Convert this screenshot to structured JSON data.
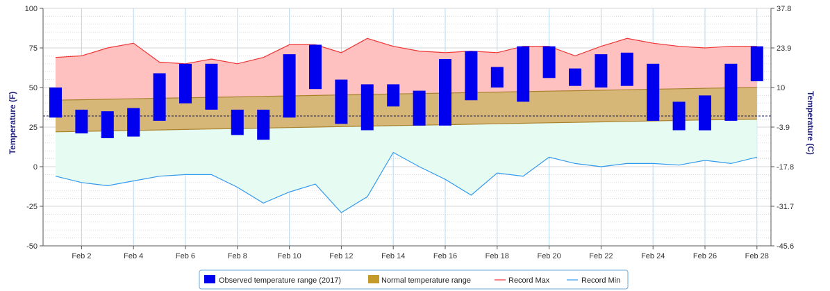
{
  "chart_data": {
    "type": "bar",
    "title": "",
    "x_tick_labels": [
      "Feb 2",
      "Feb 4",
      "Feb 6",
      "Feb 8",
      "Feb 10",
      "Feb 12",
      "Feb 14",
      "Feb 16",
      "Feb 18",
      "Feb 20",
      "Feb 22",
      "Feb 24",
      "Feb 26",
      "Feb 28"
    ],
    "x_tick_days": [
      2,
      4,
      6,
      8,
      10,
      12,
      14,
      16,
      18,
      20,
      22,
      24,
      26,
      28
    ],
    "y_left": {
      "label": "Temperature (F)",
      "ylim": [
        -50,
        100
      ],
      "ticks": [
        -50,
        -25,
        0,
        25,
        50,
        75,
        100
      ]
    },
    "y_right": {
      "label": "Temperature (C)",
      "ticks": [
        -45.6,
        -31.7,
        -17.8,
        -3.9,
        10,
        23.9,
        37.8
      ]
    },
    "grid": true,
    "reference_line_value": 32,
    "legend_placement": "bottom-center",
    "days": [
      1,
      2,
      3,
      4,
      5,
      6,
      7,
      8,
      9,
      10,
      11,
      12,
      13,
      14,
      15,
      16,
      17,
      18,
      19,
      20,
      21,
      22,
      23,
      24,
      25,
      26,
      27,
      28
    ],
    "series": [
      {
        "name": "Observed temperature range (2017)",
        "kind": "floating-bar",
        "color": "#0000ee",
        "low": [
          31,
          21,
          18,
          19,
          29,
          40,
          36,
          20,
          17,
          31,
          49,
          27,
          23,
          38,
          26,
          26,
          42,
          50,
          41,
          56,
          51,
          50,
          51,
          29,
          23,
          23,
          29,
          54
        ],
        "high": [
          50,
          36,
          35,
          37,
          59,
          65,
          65,
          36,
          36,
          71,
          77,
          55,
          52,
          52,
          48,
          68,
          73,
          63,
          76,
          76,
          62,
          71,
          72,
          65,
          41,
          45,
          65,
          76
        ]
      },
      {
        "name": "Normal temperature range",
        "kind": "band",
        "color": "#c49a2a",
        "low": [
          22,
          22.3,
          22.6,
          22.9,
          23.2,
          23.5,
          23.8,
          24.1,
          24.4,
          24.7,
          25,
          25.3,
          25.6,
          25.9,
          26.2,
          26.5,
          26.8,
          27.1,
          27.4,
          27.7,
          28,
          28.3,
          28.6,
          28.9,
          29.2,
          29.5,
          29.8,
          30
        ],
        "high": [
          42,
          42.3,
          42.6,
          42.9,
          43.2,
          43.5,
          43.8,
          44.1,
          44.4,
          44.7,
          45,
          45.3,
          45.6,
          45.9,
          46.2,
          46.5,
          46.8,
          47.1,
          47.4,
          47.7,
          48,
          48.3,
          48.6,
          48.9,
          49.2,
          49.5,
          49.8,
          50
        ]
      },
      {
        "name": "Record Max",
        "kind": "line",
        "color": "#ee3333",
        "values": [
          69,
          70,
          75,
          78,
          66,
          65,
          68,
          65,
          69,
          77,
          77,
          72,
          81,
          76,
          73,
          72,
          73,
          72,
          76,
          76,
          70,
          76,
          81,
          78,
          76,
          75,
          76,
          76
        ]
      },
      {
        "name": "Record Min",
        "kind": "line",
        "color": "#3399ee",
        "values": [
          -6,
          -10,
          -12,
          -9,
          -6,
          -5,
          -5,
          -13,
          -23,
          -16,
          -11,
          -29,
          -19,
          9,
          0,
          -8,
          -18,
          -4,
          -6,
          6,
          2,
          0,
          2,
          2,
          1,
          4,
          2,
          6
        ]
      }
    ]
  }
}
